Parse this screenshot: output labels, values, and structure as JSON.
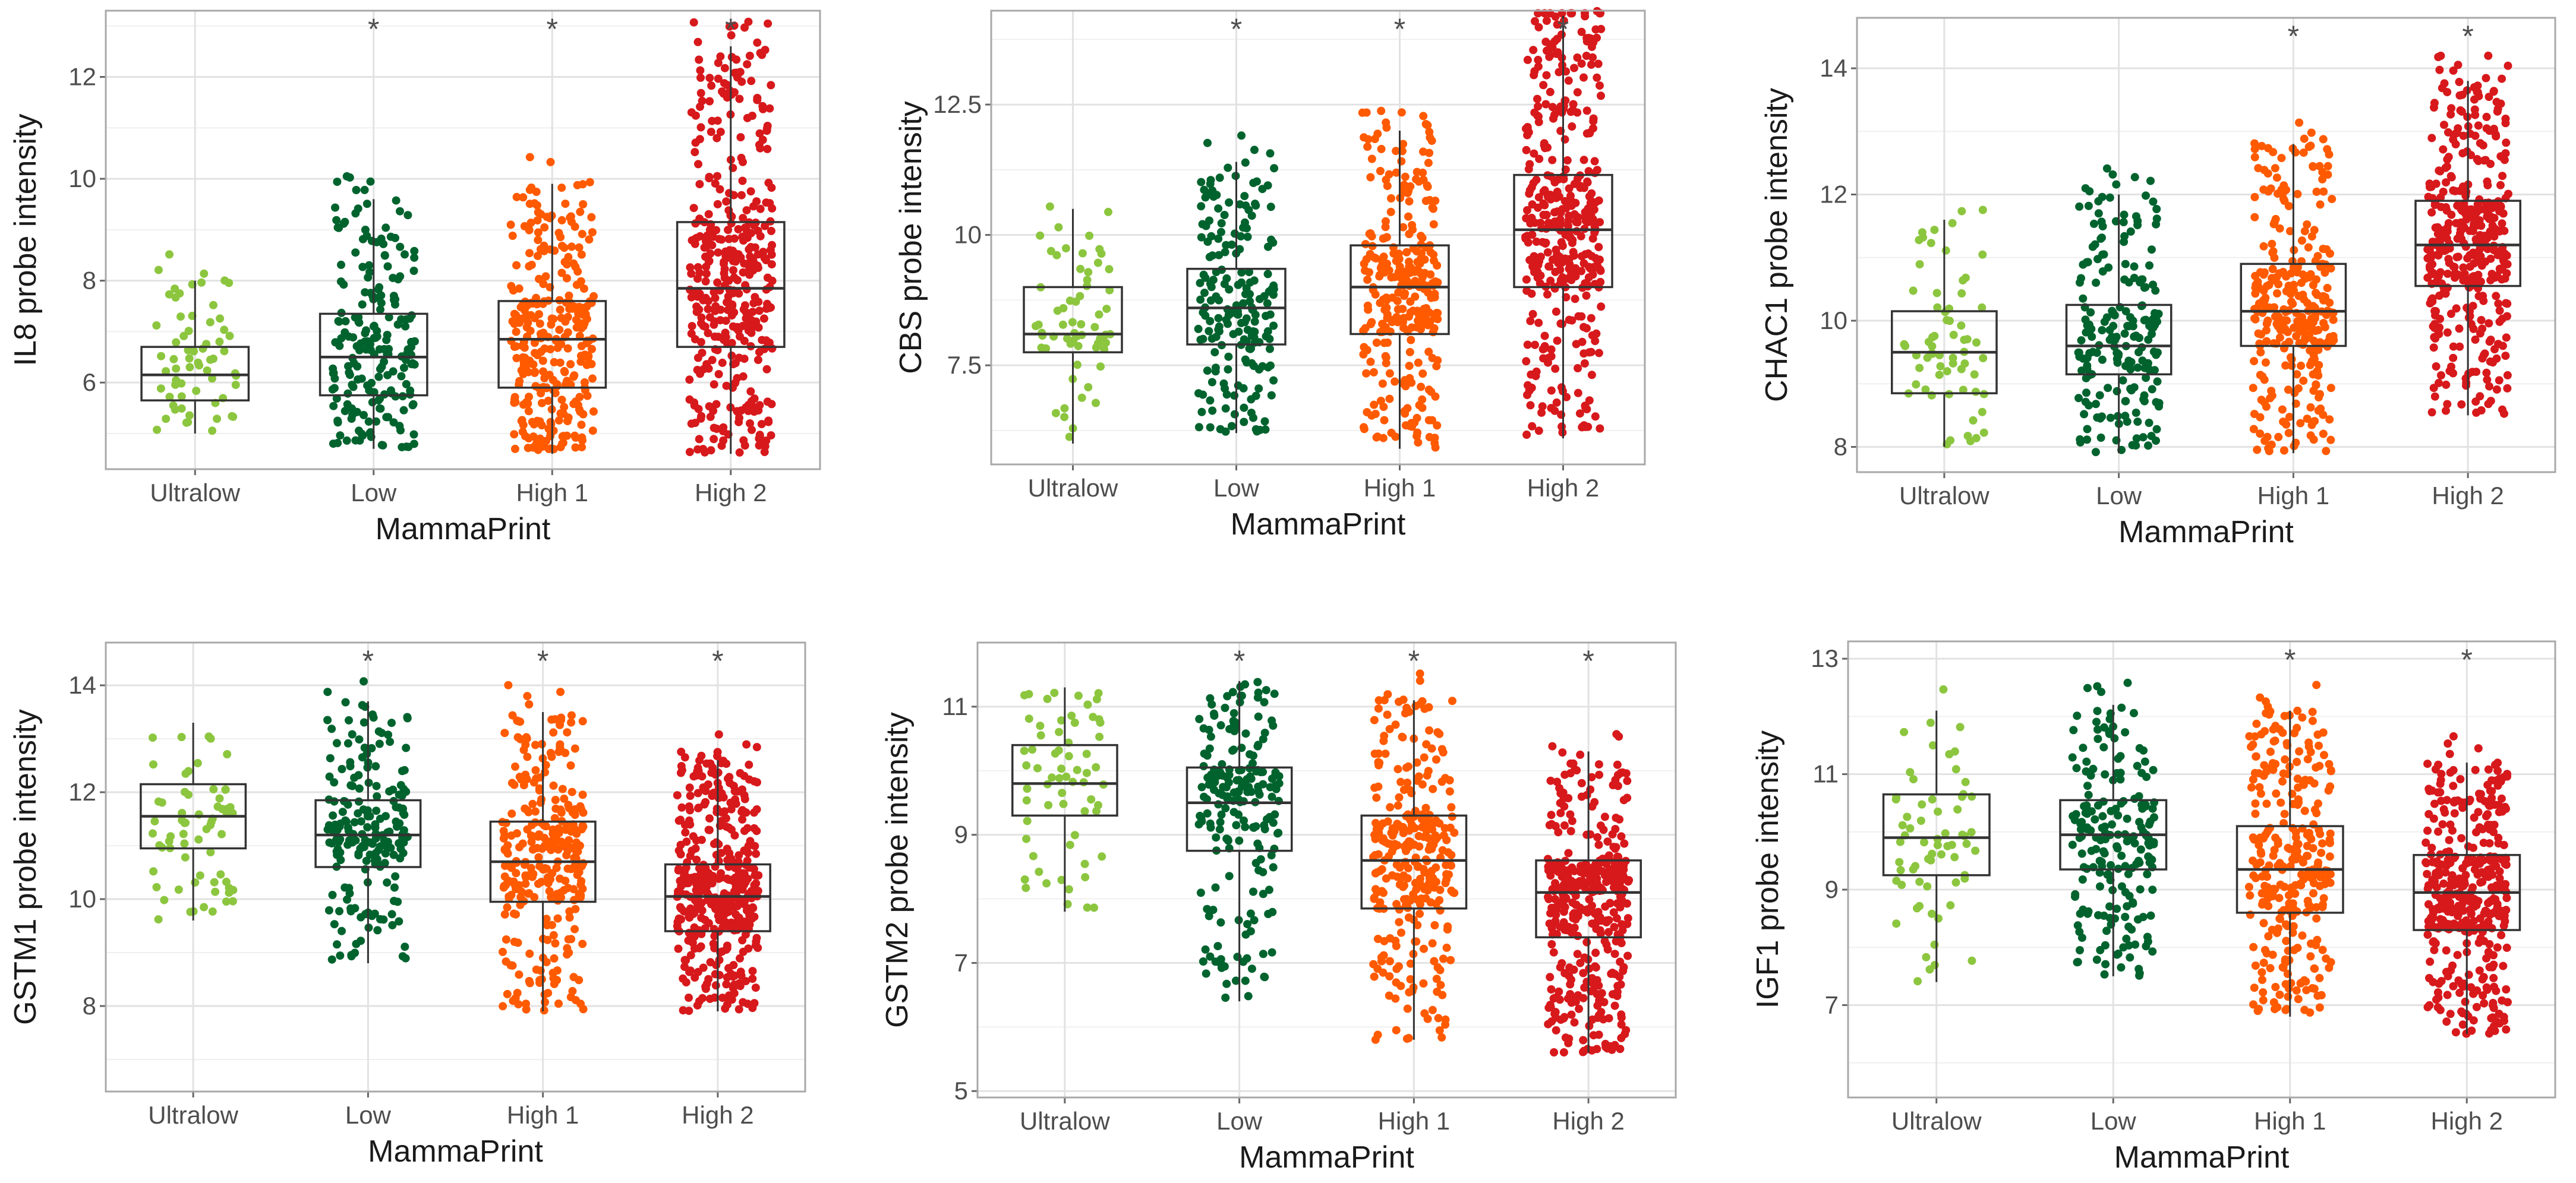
{
  "figure": {
    "categories": [
      "Ultralow",
      "Low",
      "High 1",
      "High 2"
    ],
    "group_colors": [
      "#8cc63f",
      "#00632e",
      "#ff5a00",
      "#d7191c"
    ],
    "group_n": [
      65,
      200,
      300,
      400
    ],
    "significance_marker": "*",
    "xlabel": "MammaPrint"
  },
  "chart_data": [
    {
      "type": "box",
      "ylabel": "IL8 probe intensity",
      "xlabel": "MammaPrint",
      "categories": [
        "Ultralow",
        "Low",
        "High 1",
        "High 2"
      ],
      "ylim": [
        4.3,
        13.3
      ],
      "yticks": [
        6,
        8,
        10,
        12
      ],
      "boxes": [
        {
          "min": 5.0,
          "q1": 5.65,
          "median": 6.15,
          "q3": 6.7,
          "max": 8.0
        },
        {
          "min": 4.7,
          "q1": 5.75,
          "median": 6.5,
          "q3": 7.35,
          "max": 9.6
        },
        {
          "min": 4.6,
          "q1": 5.9,
          "median": 6.85,
          "q3": 7.6,
          "max": 9.9
        },
        {
          "min": 4.6,
          "q1": 6.7,
          "median": 7.85,
          "q3": 9.15,
          "max": 12.6
        }
      ],
      "significant": [
        false,
        true,
        true,
        true
      ]
    },
    {
      "type": "box",
      "ylabel": "CBS probe intensity",
      "xlabel": "MammaPrint",
      "categories": [
        "Ultralow",
        "Low",
        "High 1",
        "High 2"
      ],
      "ylim": [
        5.6,
        14.3
      ],
      "yticks": [
        7.5,
        10.0,
        12.5
      ],
      "boxes": [
        {
          "min": 6.0,
          "q1": 7.75,
          "median": 8.1,
          "q3": 9.0,
          "max": 10.5
        },
        {
          "min": 6.2,
          "q1": 7.9,
          "median": 8.6,
          "q3": 9.35,
          "max": 11.4
        },
        {
          "min": 5.9,
          "q1": 8.1,
          "median": 9.0,
          "q3": 9.8,
          "max": 12.0
        },
        {
          "min": 6.1,
          "q1": 9.0,
          "median": 10.1,
          "q3": 11.15,
          "max": 14.2
        }
      ],
      "significant": [
        false,
        true,
        true,
        true
      ]
    },
    {
      "type": "box",
      "ylabel": "CHAC1 probe intensity",
      "xlabel": "MammaPrint",
      "categories": [
        "Ultralow",
        "Low",
        "High 1",
        "High 2"
      ],
      "ylim": [
        7.6,
        14.8
      ],
      "yticks": [
        8,
        10,
        12,
        14
      ],
      "boxes": [
        {
          "min": 8.0,
          "q1": 8.85,
          "median": 9.5,
          "q3": 10.15,
          "max": 11.6
        },
        {
          "min": 7.9,
          "q1": 9.15,
          "median": 9.6,
          "q3": 10.25,
          "max": 12.0
        },
        {
          "min": 7.9,
          "q1": 9.6,
          "median": 10.15,
          "q3": 10.9,
          "max": 12.8
        },
        {
          "min": 8.5,
          "q1": 10.55,
          "median": 11.2,
          "q3": 11.9,
          "max": 13.8
        }
      ],
      "significant": [
        false,
        false,
        true,
        true
      ]
    },
    {
      "type": "box",
      "ylabel": "GSTM1 probe intensity",
      "xlabel": "MammaPrint",
      "categories": [
        "Ultralow",
        "Low",
        "High 1",
        "High 2"
      ],
      "ylim": [
        6.4,
        14.8
      ],
      "yticks": [
        8,
        10,
        12,
        14
      ],
      "boxes": [
        {
          "min": 9.6,
          "q1": 10.95,
          "median": 11.55,
          "q3": 12.15,
          "max": 13.3
        },
        {
          "min": 8.8,
          "q1": 10.6,
          "median": 11.2,
          "q3": 11.85,
          "max": 13.7
        },
        {
          "min": 7.9,
          "q1": 9.95,
          "median": 10.7,
          "q3": 11.45,
          "max": 13.5
        },
        {
          "min": 7.9,
          "q1": 9.4,
          "median": 10.05,
          "q3": 10.65,
          "max": 12.6
        }
      ],
      "significant": [
        false,
        true,
        true,
        true
      ]
    },
    {
      "type": "box",
      "ylabel": "GSTM2 probe intensity",
      "xlabel": "MammaPrint",
      "categories": [
        "Ultralow",
        "Low",
        "High 1",
        "High 2"
      ],
      "ylim": [
        4.9,
        12.0
      ],
      "yticks": [
        5,
        7,
        9,
        11
      ],
      "boxes": [
        {
          "min": 7.8,
          "q1": 9.3,
          "median": 9.8,
          "q3": 10.4,
          "max": 11.3
        },
        {
          "min": 6.4,
          "q1": 8.75,
          "median": 9.5,
          "q3": 10.05,
          "max": 11.4
        },
        {
          "min": 5.8,
          "q1": 7.85,
          "median": 8.6,
          "q3": 9.3,
          "max": 11.1
        },
        {
          "min": 5.6,
          "q1": 7.4,
          "median": 8.1,
          "q3": 8.6,
          "max": 10.3
        }
      ],
      "significant": [
        false,
        true,
        true,
        true
      ]
    },
    {
      "type": "box",
      "ylabel": "IGF1 probe intensity",
      "xlabel": "MammaPrint",
      "categories": [
        "Ultralow",
        "Low",
        "High 1",
        "High 2"
      ],
      "ylim": [
        5.4,
        13.3
      ],
      "yticks": [
        7,
        9,
        11,
        13
      ],
      "boxes": [
        {
          "min": 7.4,
          "q1": 9.25,
          "median": 9.9,
          "q3": 10.65,
          "max": 12.1
        },
        {
          "min": 7.5,
          "q1": 9.35,
          "median": 9.95,
          "q3": 10.55,
          "max": 12.2
        },
        {
          "min": 6.8,
          "q1": 8.6,
          "median": 9.35,
          "q3": 10.1,
          "max": 12.1
        },
        {
          "min": 6.5,
          "q1": 8.3,
          "median": 8.95,
          "q3": 9.6,
          "max": 11.2
        }
      ],
      "significant": [
        false,
        false,
        true,
        true
      ]
    }
  ]
}
